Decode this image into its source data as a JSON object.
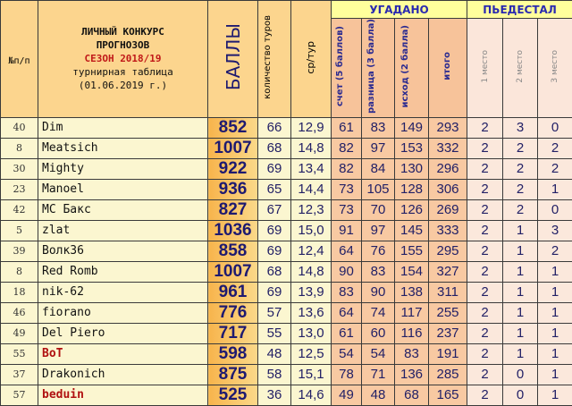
{
  "header": {
    "num": "№п/п",
    "title1": "ЛИЧНЫЙ КОНКУРС",
    "title2": "ПРОГНОЗОВ",
    "season": "СЕЗОН 2018/19",
    "subtitle": "турнирная таблица",
    "date": "(01.06.2019 г.)",
    "points": "БАЛЛЫ",
    "tours": "количество туров",
    "avg": "ср/тур",
    "guessed": "УГАДАНО",
    "score": "счет (5 баллов)",
    "diff": "разница (3 балла)",
    "outcome": "исход (2 балла)",
    "total": "итого",
    "podium": "ПЬЕДЕСТАЛ",
    "p1": "1 место",
    "p2": "2 место",
    "p3": "3 место"
  },
  "rows": [
    {
      "num": "40",
      "name": "Dim",
      "points": "852",
      "tours": "66",
      "avg": "12,9",
      "score": "61",
      "diff": "83",
      "outcome": "149",
      "total": "293",
      "p1": "2",
      "p2": "3",
      "p3": "0",
      "hl": false
    },
    {
      "num": "8",
      "name": "Meatsich",
      "points": "1007",
      "tours": "68",
      "avg": "14,8",
      "score": "82",
      "diff": "97",
      "outcome": "153",
      "total": "332",
      "p1": "2",
      "p2": "2",
      "p3": "2",
      "hl": false
    },
    {
      "num": "30",
      "name": "Mighty",
      "points": "922",
      "tours": "69",
      "avg": "13,4",
      "score": "82",
      "diff": "84",
      "outcome": "130",
      "total": "296",
      "p1": "2",
      "p2": "2",
      "p3": "2",
      "hl": false
    },
    {
      "num": "23",
      "name": "Manoel",
      "points": "936",
      "tours": "65",
      "avg": "14,4",
      "score": "73",
      "diff": "105",
      "outcome": "128",
      "total": "306",
      "p1": "2",
      "p2": "2",
      "p3": "1",
      "hl": false
    },
    {
      "num": "42",
      "name": "MC Бакс",
      "points": "827",
      "tours": "67",
      "avg": "12,3",
      "score": "73",
      "diff": "70",
      "outcome": "126",
      "total": "269",
      "p1": "2",
      "p2": "2",
      "p3": "0",
      "hl": false
    },
    {
      "num": "5",
      "name": "zlat",
      "points": "1036",
      "tours": "69",
      "avg": "15,0",
      "score": "91",
      "diff": "97",
      "outcome": "145",
      "total": "333",
      "p1": "2",
      "p2": "1",
      "p3": "3",
      "hl": false
    },
    {
      "num": "39",
      "name": "Волк36",
      "points": "858",
      "tours": "69",
      "avg": "12,4",
      "score": "64",
      "diff": "76",
      "outcome": "155",
      "total": "295",
      "p1": "2",
      "p2": "1",
      "p3": "2",
      "hl": false
    },
    {
      "num": "8",
      "name": "Red Romb",
      "points": "1007",
      "tours": "68",
      "avg": "14,8",
      "score": "90",
      "diff": "83",
      "outcome": "154",
      "total": "327",
      "p1": "2",
      "p2": "1",
      "p3": "1",
      "hl": false
    },
    {
      "num": "18",
      "name": "nik-62",
      "points": "961",
      "tours": "69",
      "avg": "13,9",
      "score": "83",
      "diff": "90",
      "outcome": "138",
      "total": "311",
      "p1": "2",
      "p2": "1",
      "p3": "1",
      "hl": false
    },
    {
      "num": "46",
      "name": "fiorano",
      "points": "776",
      "tours": "57",
      "avg": "13,6",
      "score": "64",
      "diff": "74",
      "outcome": "117",
      "total": "255",
      "p1": "2",
      "p2": "1",
      "p3": "1",
      "hl": false
    },
    {
      "num": "49",
      "name": "Del Piero",
      "points": "717",
      "tours": "55",
      "avg": "13,0",
      "score": "61",
      "diff": "60",
      "outcome": "116",
      "total": "237",
      "p1": "2",
      "p2": "1",
      "p3": "1",
      "hl": false
    },
    {
      "num": "55",
      "name": "BoT",
      "points": "598",
      "tours": "48",
      "avg": "12,5",
      "score": "54",
      "diff": "54",
      "outcome": "83",
      "total": "191",
      "p1": "2",
      "p2": "1",
      "p3": "1",
      "hl": true
    },
    {
      "num": "37",
      "name": "Drakonich",
      "points": "875",
      "tours": "58",
      "avg": "15,1",
      "score": "78",
      "diff": "71",
      "outcome": "136",
      "total": "285",
      "p1": "2",
      "p2": "0",
      "p3": "1",
      "hl": false
    },
    {
      "num": "57",
      "name": "beduin",
      "points": "525",
      "tours": "36",
      "avg": "14,6",
      "score": "49",
      "diff": "48",
      "outcome": "68",
      "total": "165",
      "p1": "2",
      "p2": "0",
      "p3": "1",
      "hl": true
    }
  ]
}
